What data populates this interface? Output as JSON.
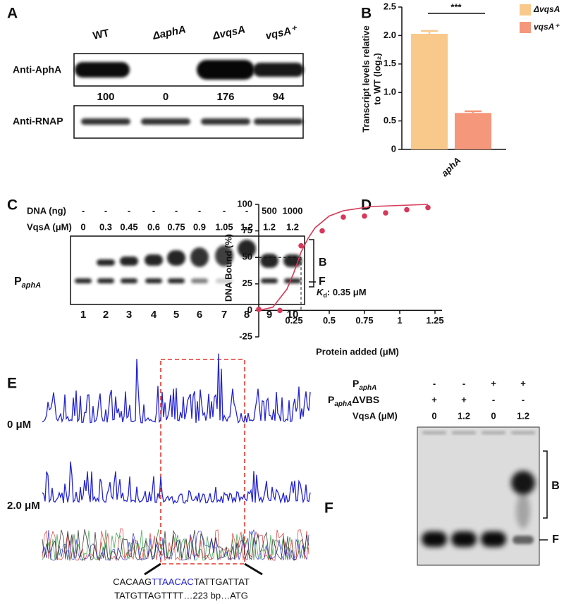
{
  "panel_labels": [
    "A",
    "B",
    "C",
    "D",
    "E",
    "F"
  ],
  "panel_a": {
    "lanes": [
      "WT",
      "ΔaphA",
      "ΔvqsA",
      "vqsA⁺"
    ],
    "rows": [
      "Anti-AphA",
      "Anti-RNAP"
    ],
    "quantities": [
      "100",
      "0",
      "176",
      "94"
    ]
  },
  "chart_data": [
    {
      "type": "bar",
      "categories": [
        "aphA"
      ],
      "series": [
        {
          "name": "ΔvqsA",
          "color": "#f9c98c",
          "values": [
            2.03
          ],
          "errors": [
            0.05
          ]
        },
        {
          "name": "vqsA⁺",
          "color": "#f4977b",
          "values": [
            0.64
          ],
          "errors": [
            0.03
          ]
        }
      ],
      "ylabel": [
        "Transcript levels relative",
        "to WT (log₂)"
      ],
      "ylim": [
        0,
        2.5
      ],
      "yticks": [
        0,
        0.5,
        {
          "value": 1,
          "label": "1.0"
        },
        1.5,
        {
          "value": 2,
          "label": "2.0"
        },
        2.5
      ],
      "annotation": "***"
    },
    {
      "type": "scatter",
      "color": "#d6395a",
      "x": [
        0,
        0.15,
        0.3,
        0.45,
        0.6,
        0.75,
        0.9,
        1.05,
        1.2
      ],
      "values": [
        1,
        0,
        61,
        75,
        88,
        89,
        92,
        95,
        97
      ],
      "fit": {
        "x": [
          0,
          0.1,
          0.2,
          0.25,
          0.3,
          0.35,
          0.4,
          0.5,
          0.6,
          0.8,
          1.0,
          1.2
        ],
        "values": [
          0,
          3,
          20,
          36,
          55,
          68,
          78,
          89,
          94,
          98,
          99,
          100
        ]
      },
      "kd_guide": {
        "x": 0.3,
        "y": 50
      },
      "kd_label": {
        "symbol": "K",
        "sub": "d",
        "text": ": 0.35 μM"
      },
      "xlabel": "Protein added (μM)",
      "ylabel": "DNA Bound (%)",
      "xlim": [
        0,
        1.3
      ],
      "ylim": [
        -25,
        100
      ],
      "xticks": [
        0.25,
        0.5,
        0.75,
        1,
        1.25
      ],
      "yticks": [
        -25,
        0,
        25,
        50,
        75,
        100
      ]
    }
  ],
  "panel_c": {
    "rows": [
      {
        "label": "DNA (ng)",
        "values": [
          "-",
          "-",
          "-",
          "-",
          "-",
          "-",
          "-",
          "-",
          "500",
          "1000"
        ]
      },
      {
        "label": "VqsA (μM)",
        "values": [
          "0",
          "0.3",
          "0.45",
          "0.6",
          "0.75",
          "0.9",
          "1.05",
          "1.2",
          "1.2",
          "1.2"
        ]
      }
    ],
    "lanes": [
      "1",
      "2",
      "3",
      "4",
      "5",
      "6",
      "7",
      "8",
      "9",
      "10"
    ],
    "probe": {
      "main": "P",
      "sub": "aphA"
    },
    "bound": "B",
    "free": "F"
  },
  "panel_e": {
    "traces": [
      "0 μM",
      "2.0 μM"
    ],
    "sequence": {
      "before": "CACAAG",
      "site": "TTAACAC",
      "after": "TATTGATTAT",
      "line2": "TATGTTAGTTTT…223 bp…ATG"
    }
  },
  "panel_f": {
    "rows": [
      {
        "main": "P",
        "sub": "aphA",
        "values": [
          "-",
          "-",
          "+",
          "+"
        ]
      },
      {
        "main": "P",
        "sub": "aphA",
        "suffix": "ΔVBS",
        "values": [
          "+",
          "+",
          "-",
          "-"
        ]
      },
      {
        "label": "VqsA (μM)",
        "values": [
          "0",
          "1.2",
          "0",
          "1.2"
        ]
      }
    ],
    "bound": "B",
    "free": "F"
  }
}
